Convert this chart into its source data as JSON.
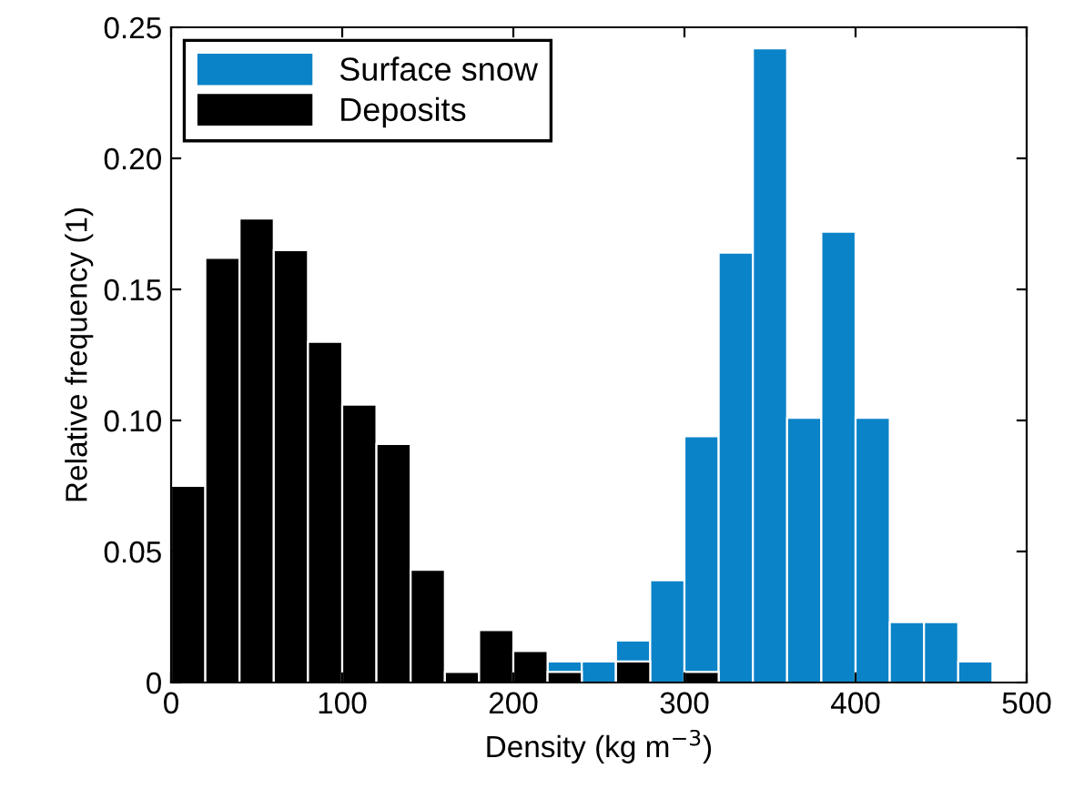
{
  "chart_data": {
    "type": "histogram",
    "xlabel": "Density (kg m$^{−3}$)",
    "ylabel": "Relative frequency (1)",
    "bins": [
      0,
      20,
      40,
      60,
      80,
      100,
      120,
      140,
      160,
      180,
      200,
      220,
      240,
      260,
      280,
      300,
      320,
      340,
      360,
      380,
      400,
      420,
      440,
      460,
      480
    ],
    "series": [
      {
        "name": "Surface snow",
        "color": "#0a83c8",
        "values": [
          0,
          0,
          0,
          0,
          0,
          0,
          0,
          0,
          0,
          0,
          0,
          0.008,
          0.008,
          0.016,
          0.039,
          0.094,
          0.164,
          0.242,
          0.101,
          0.172,
          0.101,
          0.023,
          0.023,
          0.008
        ]
      },
      {
        "name": "Deposits",
        "color": "#000000",
        "values": [
          0.075,
          0.162,
          0.177,
          0.165,
          0.13,
          0.106,
          0.091,
          0.043,
          0.004,
          0.02,
          0.012,
          0.004,
          0,
          0.008,
          0,
          0.004,
          0,
          0,
          0,
          0,
          0,
          0,
          0,
          0
        ]
      }
    ],
    "xlim": [
      0,
      500
    ],
    "xticks": [
      0,
      100,
      200,
      300,
      400,
      500
    ],
    "ylim": [
      0,
      0.25
    ],
    "yticks": [
      0,
      0.05,
      {
        "value": 0.1,
        "label": "0.10"
      },
      0.15,
      {
        "value": 0.2,
        "label": "0.20"
      },
      0.25
    ],
    "grid": false,
    "legend": "top left"
  }
}
